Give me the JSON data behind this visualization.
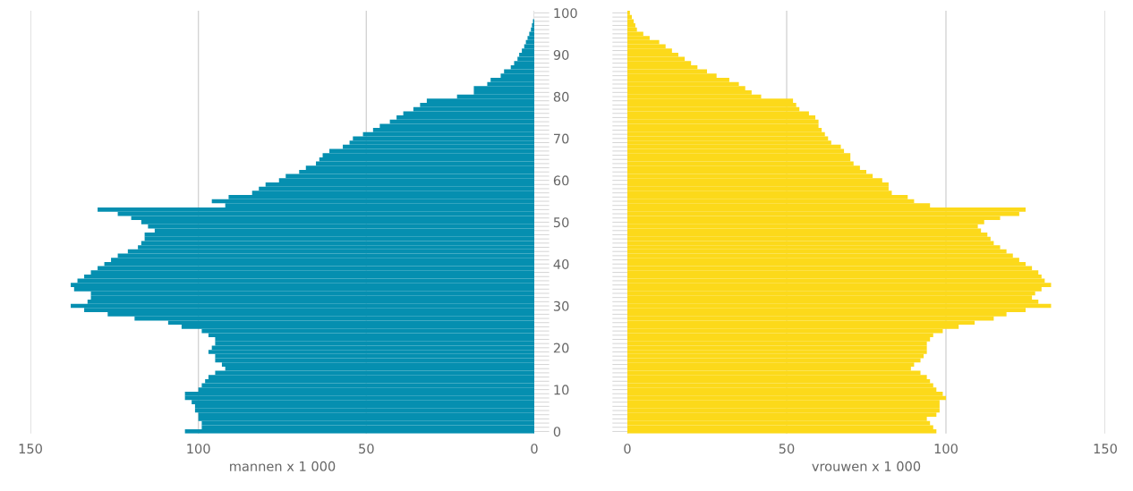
{
  "chart_data": [
    {
      "type": "bar",
      "orientation": "horizontal",
      "xlabel": "mannen x 1 000",
      "xlim": [
        150,
        0
      ],
      "xticks": [
        150,
        100,
        50,
        0
      ],
      "grid": "x",
      "categories": [
        "100",
        null,
        null,
        null,
        null,
        null,
        null,
        null,
        null,
        null,
        "90",
        null,
        null,
        null,
        null,
        null,
        null,
        null,
        null,
        null,
        "80",
        null,
        null,
        null,
        null,
        null,
        null,
        null,
        null,
        null,
        "70",
        null,
        null,
        null,
        null,
        null,
        null,
        null,
        null,
        null,
        "60",
        null,
        null,
        null,
        null,
        null,
        null,
        null,
        null,
        null,
        "50",
        null,
        null,
        null,
        null,
        null,
        null,
        null,
        null,
        null,
        "40",
        null,
        null,
        null,
        null,
        null,
        null,
        null,
        null,
        null,
        "30",
        null,
        null,
        null,
        null,
        null,
        null,
        null,
        null,
        null,
        "20",
        null,
        null,
        null,
        null,
        null,
        null,
        null,
        null,
        null,
        "10",
        null,
        null,
        null,
        null,
        null,
        null,
        null,
        null,
        null,
        "0"
      ],
      "series": [
        {
          "color": "#058fb0",
          "values": [
            null,
            null,
            0.4,
            0.7,
            1,
            1.5,
            2,
            2.5,
            3,
            3.7,
            4.5,
            5,
            6,
            7,
            9,
            10,
            13,
            14,
            18,
            18,
            23,
            32,
            34,
            36,
            39,
            41,
            43,
            46,
            48,
            51,
            54,
            55,
            57,
            61,
            63,
            64,
            65,
            68,
            70,
            74,
            76,
            80,
            82,
            84,
            91,
            96,
            92,
            130,
            124,
            120,
            117,
            115,
            113,
            116,
            116,
            117,
            118,
            121,
            124,
            126,
            128,
            130,
            132,
            134,
            136,
            138,
            137,
            132,
            132,
            133,
            138,
            134,
            127,
            119,
            109,
            105,
            99,
            97,
            95,
            95,
            96,
            97,
            95,
            95,
            93,
            92,
            95,
            97,
            98,
            99,
            100,
            104,
            104,
            102,
            101,
            101,
            100,
            100,
            99,
            99,
            104
          ]
        }
      ]
    },
    {
      "type": "bar",
      "orientation": "horizontal",
      "xlabel": "vrouwen x 1 000",
      "xlim": [
        0,
        150
      ],
      "xticks": [
        0,
        50,
        100,
        150
      ],
      "grid": "x",
      "tick_labels": "x",
      "categories": [
        "100",
        null,
        null,
        null,
        null,
        null,
        null,
        null,
        null,
        null,
        "90",
        null,
        null,
        null,
        null,
        null,
        null,
        null,
        null,
        null,
        "80",
        null,
        null,
        null,
        null,
        null,
        null,
        null,
        null,
        null,
        "70",
        null,
        null,
        null,
        null,
        null,
        null,
        null,
        null,
        null,
        "60",
        null,
        null,
        null,
        null,
        null,
        null,
        null,
        null,
        null,
        "50",
        null,
        null,
        null,
        null,
        null,
        null,
        null,
        null,
        null,
        "40",
        null,
        null,
        null,
        null,
        null,
        null,
        null,
        null,
        null,
        "30",
        null,
        null,
        null,
        null,
        null,
        null,
        null,
        null,
        null,
        "20",
        null,
        null,
        null,
        null,
        null,
        null,
        null,
        null,
        null,
        "10",
        null,
        null,
        null,
        null,
        null,
        null,
        null,
        null,
        null,
        "0"
      ],
      "series": [
        {
          "color": "#fcd91a",
          "values": [
            0.8,
            1.4,
            2,
            2.5,
            3,
            5,
            7,
            10,
            12,
            14,
            16,
            18,
            20,
            22,
            25,
            28,
            32,
            35,
            37,
            39,
            42,
            52,
            53,
            54,
            57,
            59,
            60,
            60,
            61,
            62,
            63,
            64,
            67,
            68,
            70,
            70,
            71,
            73,
            75,
            77,
            80,
            82,
            82,
            83,
            88,
            90,
            95,
            125,
            123,
            117,
            112,
            110,
            111,
            113,
            114,
            115,
            117,
            119,
            121,
            123,
            125,
            127,
            129,
            130,
            131,
            133,
            130,
            128,
            127,
            129,
            133,
            125,
            119,
            115,
            109,
            104,
            99,
            96,
            95,
            94,
            94,
            94,
            93,
            92,
            90,
            89,
            92,
            94,
            95,
            96,
            97,
            99,
            100,
            98,
            98,
            98,
            97,
            94,
            95,
            96,
            97
          ]
        }
      ]
    }
  ]
}
